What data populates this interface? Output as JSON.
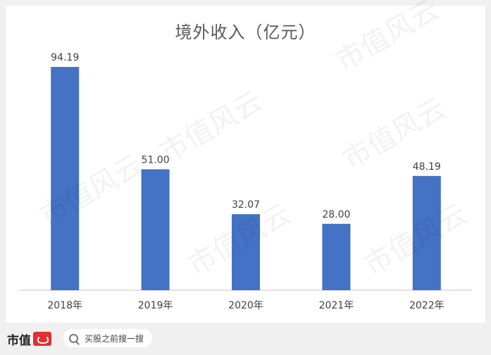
{
  "chart_data": {
    "type": "bar",
    "title": "境外收入（亿元）",
    "categories": [
      "2018年",
      "2019年",
      "2020年",
      "2021年",
      "2022年"
    ],
    "values": [
      94.19,
      51.0,
      32.07,
      28.0,
      48.19
    ],
    "data_labels": [
      "94.19",
      "51.00",
      "32.07",
      "28.00",
      "48.19"
    ],
    "xlabel": "",
    "ylabel": "",
    "ylim": [
      0,
      100
    ],
    "grid": false,
    "legend": "none",
    "bar_color": "#4472c4"
  },
  "watermark": "市值风云",
  "footer": {
    "brand_name": "市值",
    "search_placeholder": "买股之前搜一搜"
  },
  "colors": {
    "bar": "#4472c4",
    "label_text": "#404040",
    "axis": "#d9d9d9",
    "logo": "#e03030"
  }
}
